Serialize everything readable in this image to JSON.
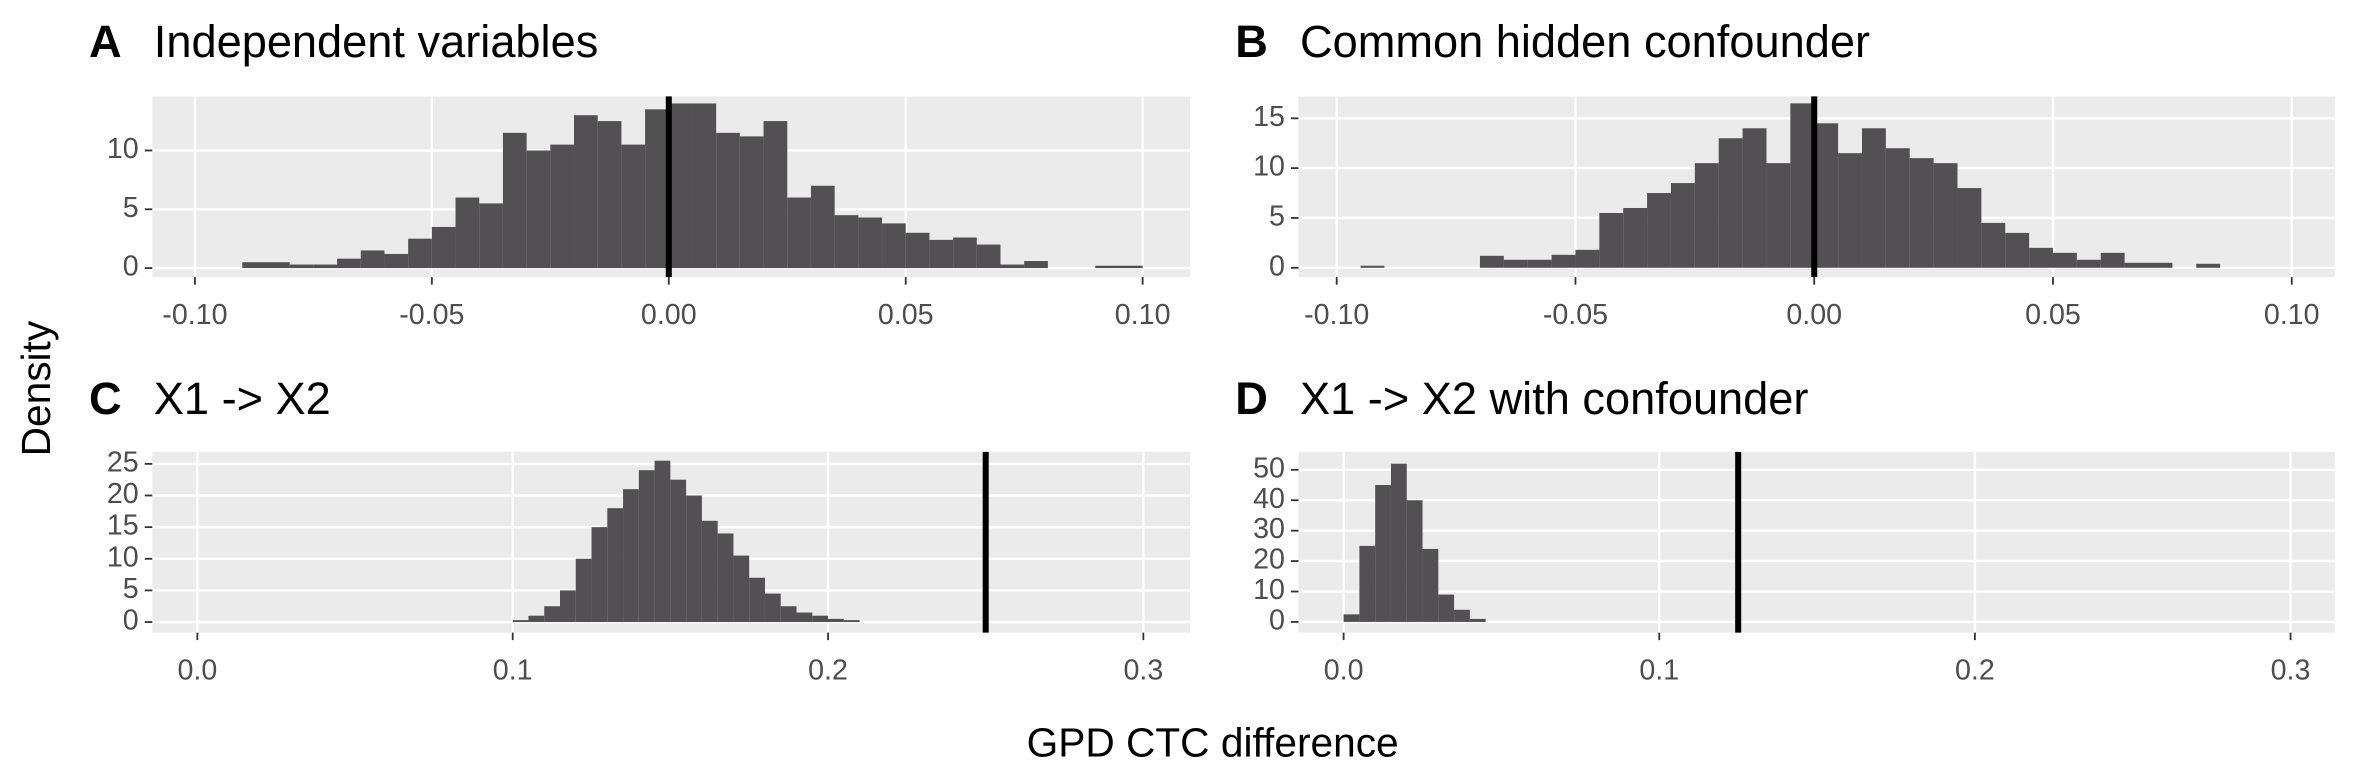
{
  "xlabel": "GPD CTC difference",
  "ylabel": "Density",
  "chart_data": [
    {
      "type": "histogram",
      "tag": "A",
      "title": "Independent variables",
      "color": "#525052",
      "grid": true,
      "vline": 0,
      "bins": [
        -0.09,
        -0.085,
        -0.08,
        -0.075,
        -0.07,
        -0.065,
        -0.06,
        -0.055,
        -0.05,
        -0.045,
        -0.04,
        -0.035,
        -0.03,
        -0.025,
        -0.02,
        -0.015,
        -0.01,
        -0.005,
        0,
        0.005,
        0.01,
        0.015,
        0.02,
        0.025,
        0.03,
        0.035,
        0.04,
        0.045,
        0.05,
        0.055,
        0.06,
        0.065,
        0.07,
        0.075,
        0.08,
        0.085,
        0.09,
        0.095,
        0.1
      ],
      "values": [
        0.5,
        0.5,
        0.3,
        0.3,
        0.8,
        1.5,
        1.2,
        2.5,
        3.5,
        6,
        5.5,
        11.5,
        10,
        10.5,
        13,
        12.5,
        10.5,
        13.5,
        14,
        14,
        11.5,
        11.2,
        12.5,
        6,
        7,
        4.5,
        4.3,
        3.8,
        3,
        2.4,
        2.6,
        2,
        0.3,
        0.6,
        0,
        0,
        0.2,
        0.2
      ],
      "xlim": [
        -0.109,
        0.11
      ],
      "xticks": [
        {
          "value": -0.1,
          "label": "-0.10"
        },
        {
          "value": -0.05,
          "label": "-0.05"
        },
        {
          "value": 0,
          "label": "0.00"
        },
        {
          "value": 0.05,
          "label": "0.05"
        },
        {
          "value": 0.1,
          "label": "0.10"
        }
      ],
      "ylim": [
        -0.77,
        14.6
      ],
      "yticks": [
        0,
        5,
        10
      ]
    },
    {
      "type": "histogram",
      "tag": "B",
      "title": "Common hidden confounder",
      "color": "#525052",
      "grid": true,
      "vline": 0,
      "bins": [
        -0.095,
        -0.09,
        -0.085,
        -0.08,
        -0.075,
        -0.07,
        -0.065,
        -0.06,
        -0.055,
        -0.05,
        -0.045,
        -0.04,
        -0.035,
        -0.03,
        -0.025,
        -0.02,
        -0.015,
        -0.01,
        -0.005,
        0,
        0.005,
        0.01,
        0.015,
        0.02,
        0.025,
        0.03,
        0.035,
        0.04,
        0.045,
        0.05,
        0.055,
        0.06,
        0.065,
        0.07,
        0.075,
        0.08,
        0.085
      ],
      "values": [
        0.2,
        0,
        0,
        0,
        0,
        1.2,
        0.8,
        0.8,
        1.3,
        1.8,
        5.5,
        6,
        7.5,
        8.5,
        10.5,
        13,
        14,
        10.5,
        16.5,
        14.5,
        11.5,
        14,
        12,
        11,
        10.5,
        8,
        4.5,
        3.5,
        2,
        1.5,
        0.8,
        1.5,
        0.5,
        0.5,
        0,
        0.4
      ],
      "xlim": [
        -0.108,
        0.109
      ],
      "xticks": [
        {
          "value": -0.1,
          "label": "-0.10"
        },
        {
          "value": -0.05,
          "label": "-0.05"
        },
        {
          "value": 0,
          "label": "0.00"
        },
        {
          "value": 0.05,
          "label": "0.05"
        },
        {
          "value": 0.1,
          "label": "0.10"
        }
      ],
      "ylim": [
        -0.94,
        17.2
      ],
      "yticks": [
        0,
        5,
        10,
        15
      ]
    },
    {
      "type": "histogram",
      "tag": "C",
      "title": "X1 -> X2",
      "color": "#525052",
      "grid": true,
      "vline": 0.25,
      "bins": [
        0.1,
        0.105,
        0.11,
        0.115,
        0.12,
        0.125,
        0.13,
        0.135,
        0.14,
        0.145,
        0.15,
        0.155,
        0.16,
        0.165,
        0.17,
        0.175,
        0.18,
        0.185,
        0.19,
        0.195,
        0.2,
        0.205,
        0.21
      ],
      "values": [
        0.3,
        1,
        2.5,
        5,
        10,
        15,
        18,
        21,
        24,
        25.5,
        22.5,
        20,
        16,
        14,
        10.5,
        7,
        4.5,
        2.5,
        1.5,
        1,
        0.5,
        0.3
      ],
      "xlim": [
        -0.0143,
        0.3148
      ],
      "xticks": [
        {
          "value": 0,
          "label": "0.0"
        },
        0.1,
        0.2,
        0.3
      ],
      "ylim": [
        -1.67,
        26.9
      ],
      "yticks": [
        0,
        5,
        10,
        15,
        20,
        25
      ]
    },
    {
      "type": "histogram",
      "tag": "D",
      "title": "X1 -> X2 with confounder",
      "color": "#525052",
      "grid": true,
      "vline": 0.125,
      "bins": [
        0,
        0.005,
        0.01,
        0.015,
        0.02,
        0.025,
        0.03,
        0.035,
        0.04,
        0.045
      ],
      "values": [
        2.5,
        25,
        45,
        52,
        40,
        24,
        9,
        4,
        1
      ],
      "xlim": [
        -0.0143,
        0.314
      ],
      "xticks": [
        {
          "value": 0,
          "label": "0.0"
        },
        0.1,
        0.2,
        0.3
      ],
      "ylim": [
        -3.5,
        55.9
      ],
      "yticks": [
        0,
        10,
        20,
        30,
        40,
        50
      ]
    }
  ]
}
